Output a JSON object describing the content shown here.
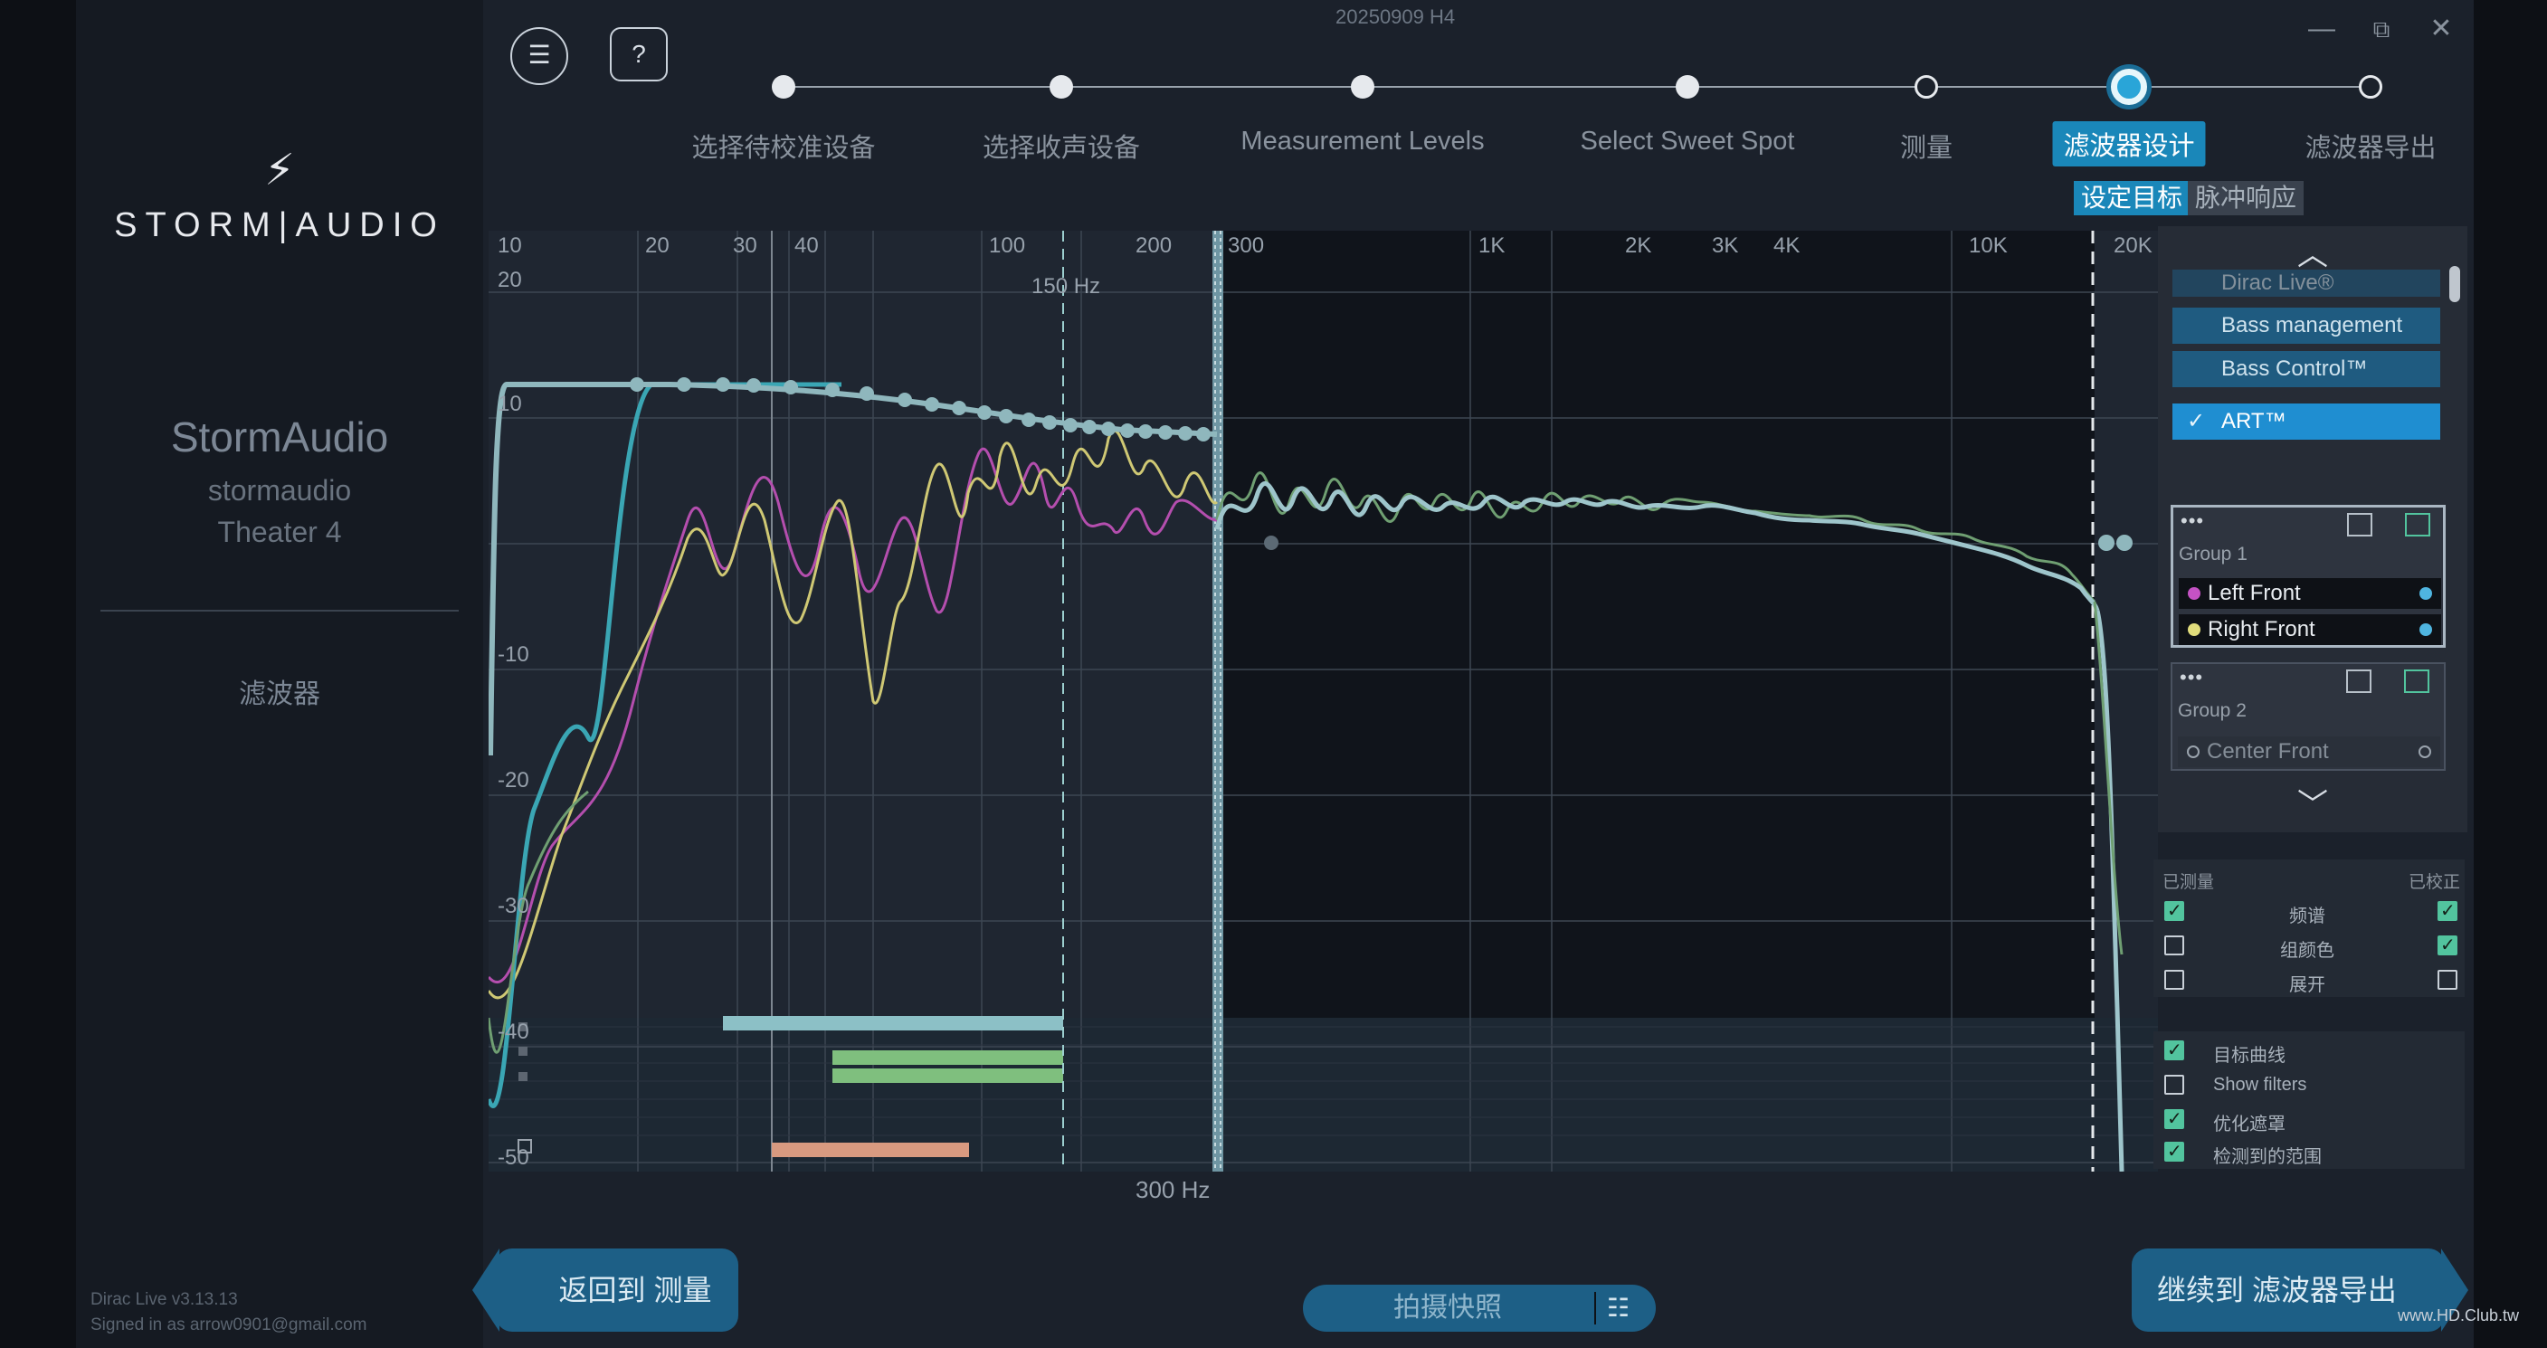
{
  "app": {
    "session_title": "20250909 H4",
    "version": "Dirac Live v3.13.13",
    "signed_in": "Signed in as arrow0901@gmail.com",
    "watermark": "www.HD.Club.tw"
  },
  "sidebar": {
    "logo_text": "STORM|AUDIO",
    "device_brand": "StormAudio",
    "device_model_line1": "stormaudio",
    "device_model_line2": "Theater 4",
    "section": "滤波器"
  },
  "toolbar": {
    "menu_icon": "hamburger-icon",
    "help_label": "?"
  },
  "window_controls": {
    "minimize": "—",
    "restore": "⧉",
    "close": "✕"
  },
  "steps": [
    {
      "label": "选择待校准设备",
      "state": "done"
    },
    {
      "label": "选择收声设备",
      "state": "done"
    },
    {
      "label": "Measurement Levels",
      "state": "done"
    },
    {
      "label": "Select Sweet Spot",
      "state": "done"
    },
    {
      "label": "测量",
      "state": "pending"
    },
    {
      "label": "滤波器设计",
      "state": "active"
    },
    {
      "label": "滤波器导出",
      "state": "pending"
    }
  ],
  "sub_tabs": [
    {
      "label": "设定目标",
      "active": true
    },
    {
      "label": "脉冲响应",
      "active": false
    }
  ],
  "graph": {
    "freq_ticks": [
      "10",
      "20",
      "30",
      "40",
      "100",
      "200",
      "300",
      "1K",
      "2K",
      "3K",
      "4K",
      "10K",
      "20K"
    ],
    "db_ticks": [
      "20",
      "10",
      "-10",
      "-20",
      "-30",
      "-40",
      "-50"
    ],
    "marker_low": "150 Hz",
    "marker_bottom": "300 Hz",
    "colors": {
      "target": "#8fb7bd",
      "left_front": "#b04aa8",
      "right_front": "#c9c265",
      "corrected": "#9ec5cb",
      "green": "#6f9f72",
      "cyan": "#3aa6b4"
    }
  },
  "right_panel": {
    "items": [
      {
        "label": "Dirac Live®",
        "faded": true
      },
      {
        "label": "Bass management"
      },
      {
        "label": "Bass Control™"
      },
      {
        "label": "ART™",
        "checked": true
      }
    ],
    "group1": {
      "label": "Group 1",
      "channels": [
        {
          "name": "Left Front",
          "color": "#c552c4"
        },
        {
          "name": "Right Front",
          "color": "#e1dd7c"
        }
      ]
    },
    "group2": {
      "label": "Group 2",
      "channels": [
        {
          "name": "Center Front"
        }
      ]
    }
  },
  "options": {
    "header_left": "已测量",
    "header_right": "已校正",
    "rows": [
      {
        "label": "频谱",
        "measured": true,
        "corrected": true
      },
      {
        "label": "组颜色",
        "measured": false,
        "corrected": true
      },
      {
        "label": "展开",
        "measured": false,
        "corrected": false
      }
    ],
    "toggles": [
      {
        "label": "目标曲线",
        "on": true
      },
      {
        "label": "Show filters",
        "on": false
      },
      {
        "label": "优化遮罩",
        "on": true
      },
      {
        "label": "检测到的范围",
        "on": true
      }
    ]
  },
  "footer": {
    "back_label": "返回到 测量",
    "next_label": "继续到 滤波器导出",
    "snapshot_label": "拍摄快照"
  }
}
